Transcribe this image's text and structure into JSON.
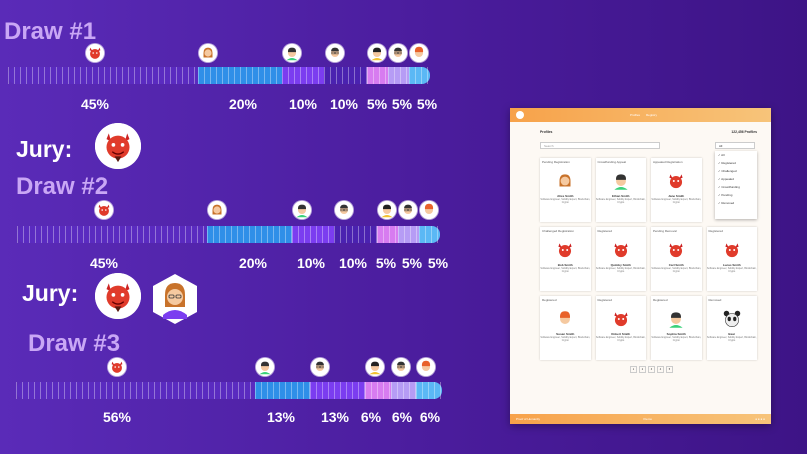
{
  "draws": [
    {
      "title": "Draw #1",
      "segments": [
        {
          "percent": 45,
          "label": "45%",
          "color": "#5a2bc0"
        },
        {
          "percent": 20,
          "label": "20%",
          "color": "#2f8fe8"
        },
        {
          "percent": 10,
          "label": "10%",
          "color": "#7b3df0"
        },
        {
          "percent": 10,
          "label": "10%",
          "color": "#4a22b0"
        },
        {
          "percent": 5,
          "label": "5%",
          "color": "#d77cf0"
        },
        {
          "percent": 5,
          "label": "5%",
          "color": "#b69cf5"
        },
        {
          "percent": 5,
          "label": "5%",
          "color": "#5bb8f5"
        }
      ],
      "jury_label": "Jury:",
      "jury": [
        "devil"
      ]
    },
    {
      "title": "Draw #2",
      "segments": [
        {
          "percent": 45,
          "label": "45%",
          "color": "#5a2bc0"
        },
        {
          "percent": 20,
          "label": "20%",
          "color": "#2f8fe8"
        },
        {
          "percent": 10,
          "label": "10%",
          "color": "#7b3df0"
        },
        {
          "percent": 10,
          "label": "10%",
          "color": "#4a22b0"
        },
        {
          "percent": 5,
          "label": "5%",
          "color": "#d77cf0"
        },
        {
          "percent": 5,
          "label": "5%",
          "color": "#b69cf5"
        },
        {
          "percent": 5,
          "label": "5%",
          "color": "#5bb8f5"
        }
      ],
      "jury_label": "Jury:",
      "jury": [
        "devil",
        "woman"
      ]
    },
    {
      "title": "Draw #3",
      "segments": [
        {
          "percent": 56,
          "label": "56%",
          "color": "#5a2bc0"
        },
        {
          "percent": 13,
          "label": "13%",
          "color": "#2f8fe8"
        },
        {
          "percent": 13,
          "label": "13%",
          "color": "#7b3df0"
        },
        {
          "percent": 6,
          "label": "6%",
          "color": "#d77cf0"
        },
        {
          "percent": 6,
          "label": "6%",
          "color": "#b69cf5"
        },
        {
          "percent": 6,
          "label": "6%",
          "color": "#5bb8f5"
        }
      ],
      "jury_label": "",
      "jury": []
    }
  ],
  "app": {
    "nav": [
      "Profiles",
      "Registry"
    ],
    "profiles_title": "Profiles",
    "profiles_count": "122,456 Profiles",
    "search_placeholder": "Search",
    "filter_value": "All",
    "filter_options": [
      "All",
      "Registered",
      "Challenged",
      "Appealed",
      "Crowdfunding",
      "Pending",
      "Removed"
    ],
    "cards": [
      {
        "tag": "Pending Registration",
        "name": "Alice Smith",
        "face": "woman"
      },
      {
        "tag": "Crowdfunding Appeal",
        "name": "Ethan Smith",
        "face": "man-teal"
      },
      {
        "tag": "Appealed Registration",
        "name": "Jane Smith",
        "face": "devil"
      },
      {
        "tag": "",
        "name": "",
        "face": ""
      },
      {
        "tag": "Challenged Registration",
        "name": "Bob Smith",
        "face": "devil"
      },
      {
        "tag": "Registered",
        "name": "Quimby Smith",
        "face": "devil"
      },
      {
        "tag": "Pending Removal",
        "name": "Carl Smith",
        "face": "devil"
      },
      {
        "tag": "Registered",
        "name": "Lucas Smith",
        "face": "devil"
      },
      {
        "tag": "Registered",
        "name": "Susan Smith",
        "face": "redhead"
      },
      {
        "tag": "Registered",
        "name": "Robert Smith",
        "face": "devil"
      },
      {
        "tag": "Registered",
        "name": "Sophia Smith",
        "face": "man-teal"
      },
      {
        "tag": "Removed",
        "name": "Bear",
        "face": "panda"
      }
    ],
    "card_desc": "Software Engineer, Solidity Expert, Blockchain, Crypto",
    "pages": [
      "1",
      "2",
      "3",
      "4",
      "5"
    ],
    "footer_left": "Proof of Humanity",
    "footer_mid": "Kleros"
  }
}
